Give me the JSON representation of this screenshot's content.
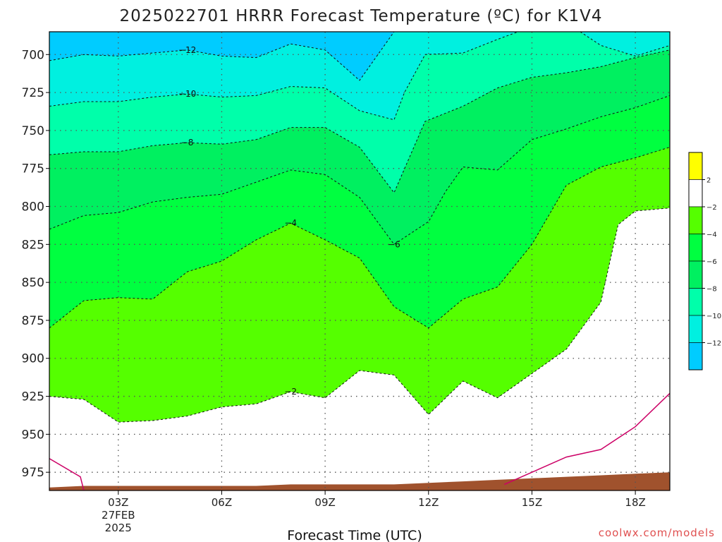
{
  "page": {
    "title": "2025022701 HRRR Forecast Temperature (ºC) for K1V4",
    "xlabel": "Forecast Time (UTC)",
    "credit": "coolwx.com/models"
  },
  "colors": {
    "below_-12": "#00ccff",
    "-12_-10": "#00f0e0",
    "-10_-8": "#00ffaa",
    "-8_-6": "#00f060",
    "-6_-4": "#00ff40",
    "-4_-2": "#55ff00",
    "-2_2": "#ffffff",
    "above_2": "#ffff00",
    "terrain": "#a0522d",
    "freezing_line": "#cc0066"
  },
  "chart_data": {
    "type": "contour",
    "title": "2025022701 HRRR Forecast Temperature (ºC) for K1V4",
    "xlabel": "Forecast Time (UTC)",
    "ylabel": "",
    "xlim": [
      1,
      19
    ],
    "ylim": [
      685,
      987
    ],
    "y_inverted": true,
    "grid": true,
    "x_ticks": [
      {
        "value": 3,
        "label": "03Z",
        "sub": [
          "27FEB",
          "2025"
        ]
      },
      {
        "value": 6,
        "label": "06Z"
      },
      {
        "value": 9,
        "label": "09Z"
      },
      {
        "value": 12,
        "label": "12Z"
      },
      {
        "value": 15,
        "label": "15Z"
      },
      {
        "value": 18,
        "label": "18Z"
      }
    ],
    "y_ticks": [
      700,
      725,
      750,
      775,
      800,
      825,
      850,
      875,
      900,
      925,
      950,
      975
    ],
    "colorbar": {
      "labels": [
        "2",
        "−2",
        "−4",
        "−6",
        "−8",
        "−10",
        "−12"
      ],
      "bands": [
        "above_2",
        "-2_2",
        "-4_-2",
        "-6_-4",
        "-8_-6",
        "-10_-8",
        "-12_-10",
        "below_-12"
      ]
    },
    "isotherms": [
      {
        "level": -12,
        "label": "−12",
        "label_at": [
          5,
          697
        ],
        "points": [
          [
            1,
            704
          ],
          [
            2,
            700
          ],
          [
            3,
            701
          ],
          [
            4,
            699
          ],
          [
            5,
            697
          ],
          [
            6,
            701
          ],
          [
            7,
            702
          ],
          [
            8,
            693
          ],
          [
            9,
            697
          ],
          [
            10,
            717
          ],
          [
            11,
            685
          ]
        ]
      },
      {
        "level": -12,
        "label": "",
        "points": [
          [
            13,
            685
          ],
          [
            13.2,
            685
          ],
          [
            13.6,
            685
          ]
        ]
      },
      {
        "level": -10,
        "label": "−10",
        "label_at": [
          5,
          726
        ],
        "points": [
          [
            1,
            734
          ],
          [
            2,
            731
          ],
          [
            3,
            731
          ],
          [
            4,
            728
          ],
          [
            5,
            726
          ],
          [
            6,
            728
          ],
          [
            7,
            727
          ],
          [
            8,
            721
          ],
          [
            9,
            722
          ],
          [
            10,
            737
          ],
          [
            11,
            743
          ],
          [
            11.3,
            725
          ],
          [
            11.9,
            700
          ],
          [
            13,
            699
          ],
          [
            14,
            690
          ],
          [
            14.6,
            685
          ]
        ]
      },
      {
        "level": -10,
        "label": "",
        "points": [
          [
            16.4,
            685
          ],
          [
            17,
            694
          ],
          [
            18,
            701
          ],
          [
            19,
            694
          ]
        ]
      },
      {
        "level": -8,
        "label": "−8",
        "label_at": [
          5,
          758
        ],
        "points": [
          [
            1,
            766
          ],
          [
            2,
            764
          ],
          [
            3,
            764
          ],
          [
            4,
            760
          ],
          [
            5,
            758
          ],
          [
            6,
            759
          ],
          [
            7,
            756
          ],
          [
            8,
            748
          ],
          [
            9,
            748
          ],
          [
            10,
            761
          ],
          [
            11,
            791
          ],
          [
            11.9,
            744
          ],
          [
            13,
            734
          ],
          [
            14,
            722
          ],
          [
            15,
            715
          ],
          [
            16,
            712
          ],
          [
            17,
            708
          ],
          [
            18,
            702
          ],
          [
            19,
            697
          ]
        ]
      },
      {
        "level": -6,
        "label": "−6",
        "label_at": [
          11,
          825
        ],
        "points": [
          [
            1,
            815
          ],
          [
            2,
            806
          ],
          [
            3,
            804
          ],
          [
            4,
            797
          ],
          [
            5,
            794
          ],
          [
            6,
            792
          ],
          [
            7,
            784
          ],
          [
            8,
            776
          ],
          [
            9,
            779
          ],
          [
            10,
            794
          ],
          [
            11,
            825
          ],
          [
            12,
            810
          ],
          [
            12.5,
            790
          ],
          [
            13,
            774
          ],
          [
            14,
            776
          ],
          [
            15,
            756
          ],
          [
            16,
            749
          ],
          [
            17,
            741
          ],
          [
            18,
            735
          ],
          [
            19,
            727
          ]
        ]
      },
      {
        "level": -4,
        "label": "−4",
        "label_at": [
          8,
          811
        ],
        "points": [
          [
            1,
            880
          ],
          [
            2,
            862
          ],
          [
            3,
            860
          ],
          [
            4,
            861
          ],
          [
            5,
            843
          ],
          [
            6,
            836
          ],
          [
            7,
            822
          ],
          [
            8,
            811
          ],
          [
            9,
            822
          ],
          [
            10,
            834
          ],
          [
            11,
            866
          ],
          [
            12,
            880
          ],
          [
            13,
            861
          ],
          [
            14,
            853
          ],
          [
            15,
            825
          ],
          [
            16,
            786
          ],
          [
            17,
            774
          ],
          [
            18,
            768
          ],
          [
            19,
            761
          ]
        ]
      },
      {
        "level": -2,
        "label": "−2",
        "label_at": [
          8,
          922
        ],
        "points": [
          [
            1,
            925
          ],
          [
            2,
            927
          ],
          [
            3,
            942
          ],
          [
            4,
            941
          ],
          [
            5,
            938
          ],
          [
            6,
            932
          ],
          [
            7,
            930
          ],
          [
            8,
            922
          ],
          [
            9,
            926
          ],
          [
            10,
            908
          ],
          [
            11,
            911
          ],
          [
            12,
            937
          ],
          [
            13,
            915
          ],
          [
            14,
            926
          ],
          [
            15,
            910
          ],
          [
            16,
            894
          ],
          [
            17,
            863
          ],
          [
            17.5,
            812
          ],
          [
            18,
            803
          ],
          [
            19,
            801
          ]
        ]
      }
    ],
    "freezing_lines": [
      {
        "level": 0,
        "points": [
          [
            1,
            966
          ],
          [
            1.9,
            978
          ],
          [
            2,
            987
          ]
        ]
      },
      {
        "level": 0,
        "points": [
          [
            14.2,
            983
          ],
          [
            15,
            975
          ],
          [
            16,
            965
          ],
          [
            17,
            960
          ],
          [
            18,
            945
          ],
          [
            19,
            923
          ]
        ]
      }
    ],
    "warm_region": {
      "level": 2,
      "points": [
        [
          17.7,
          984
        ],
        [
          19,
          976
        ],
        [
          19,
          983
        ]
      ]
    },
    "terrain": {
      "points": [
        [
          1,
          985
        ],
        [
          2,
          984
        ],
        [
          3,
          984
        ],
        [
          4,
          984
        ],
        [
          5,
          984
        ],
        [
          6,
          984
        ],
        [
          7,
          984
        ],
        [
          8,
          983
        ],
        [
          9,
          983
        ],
        [
          10,
          983
        ],
        [
          11,
          983
        ],
        [
          12,
          982
        ],
        [
          13,
          981
        ],
        [
          14,
          980
        ],
        [
          15,
          979
        ],
        [
          16,
          978
        ],
        [
          17,
          977
        ],
        [
          18,
          976
        ],
        [
          19,
          975
        ]
      ]
    }
  }
}
